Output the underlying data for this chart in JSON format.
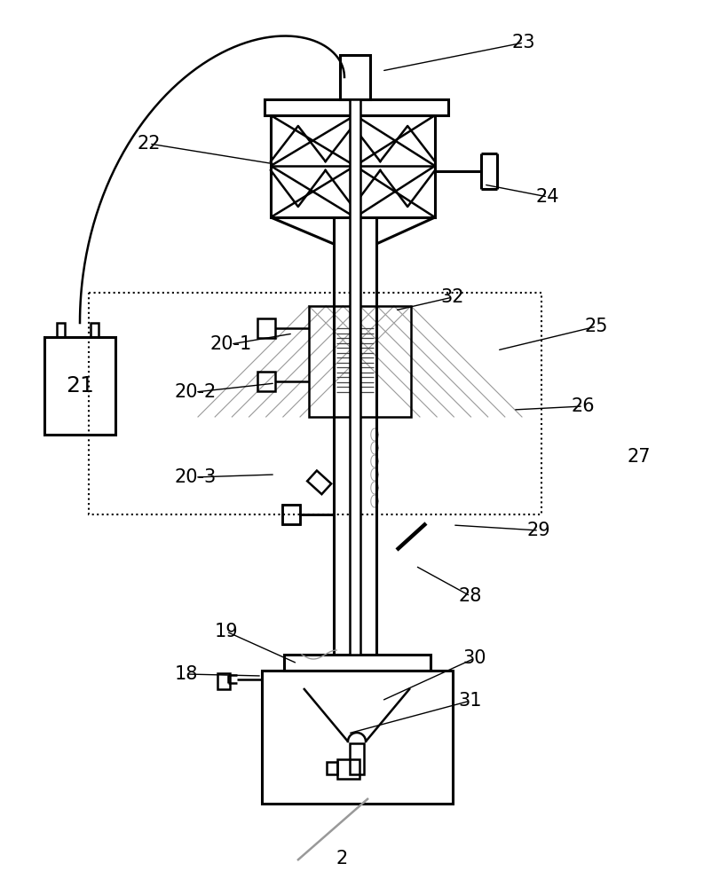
{
  "bg": "#ffffff",
  "lc": "#000000",
  "gc": "#999999",
  "figsize": [
    8.01,
    10.0
  ],
  "dpi": 100,
  "fs": 15,
  "lw": 1.8,
  "lw2": 2.2
}
